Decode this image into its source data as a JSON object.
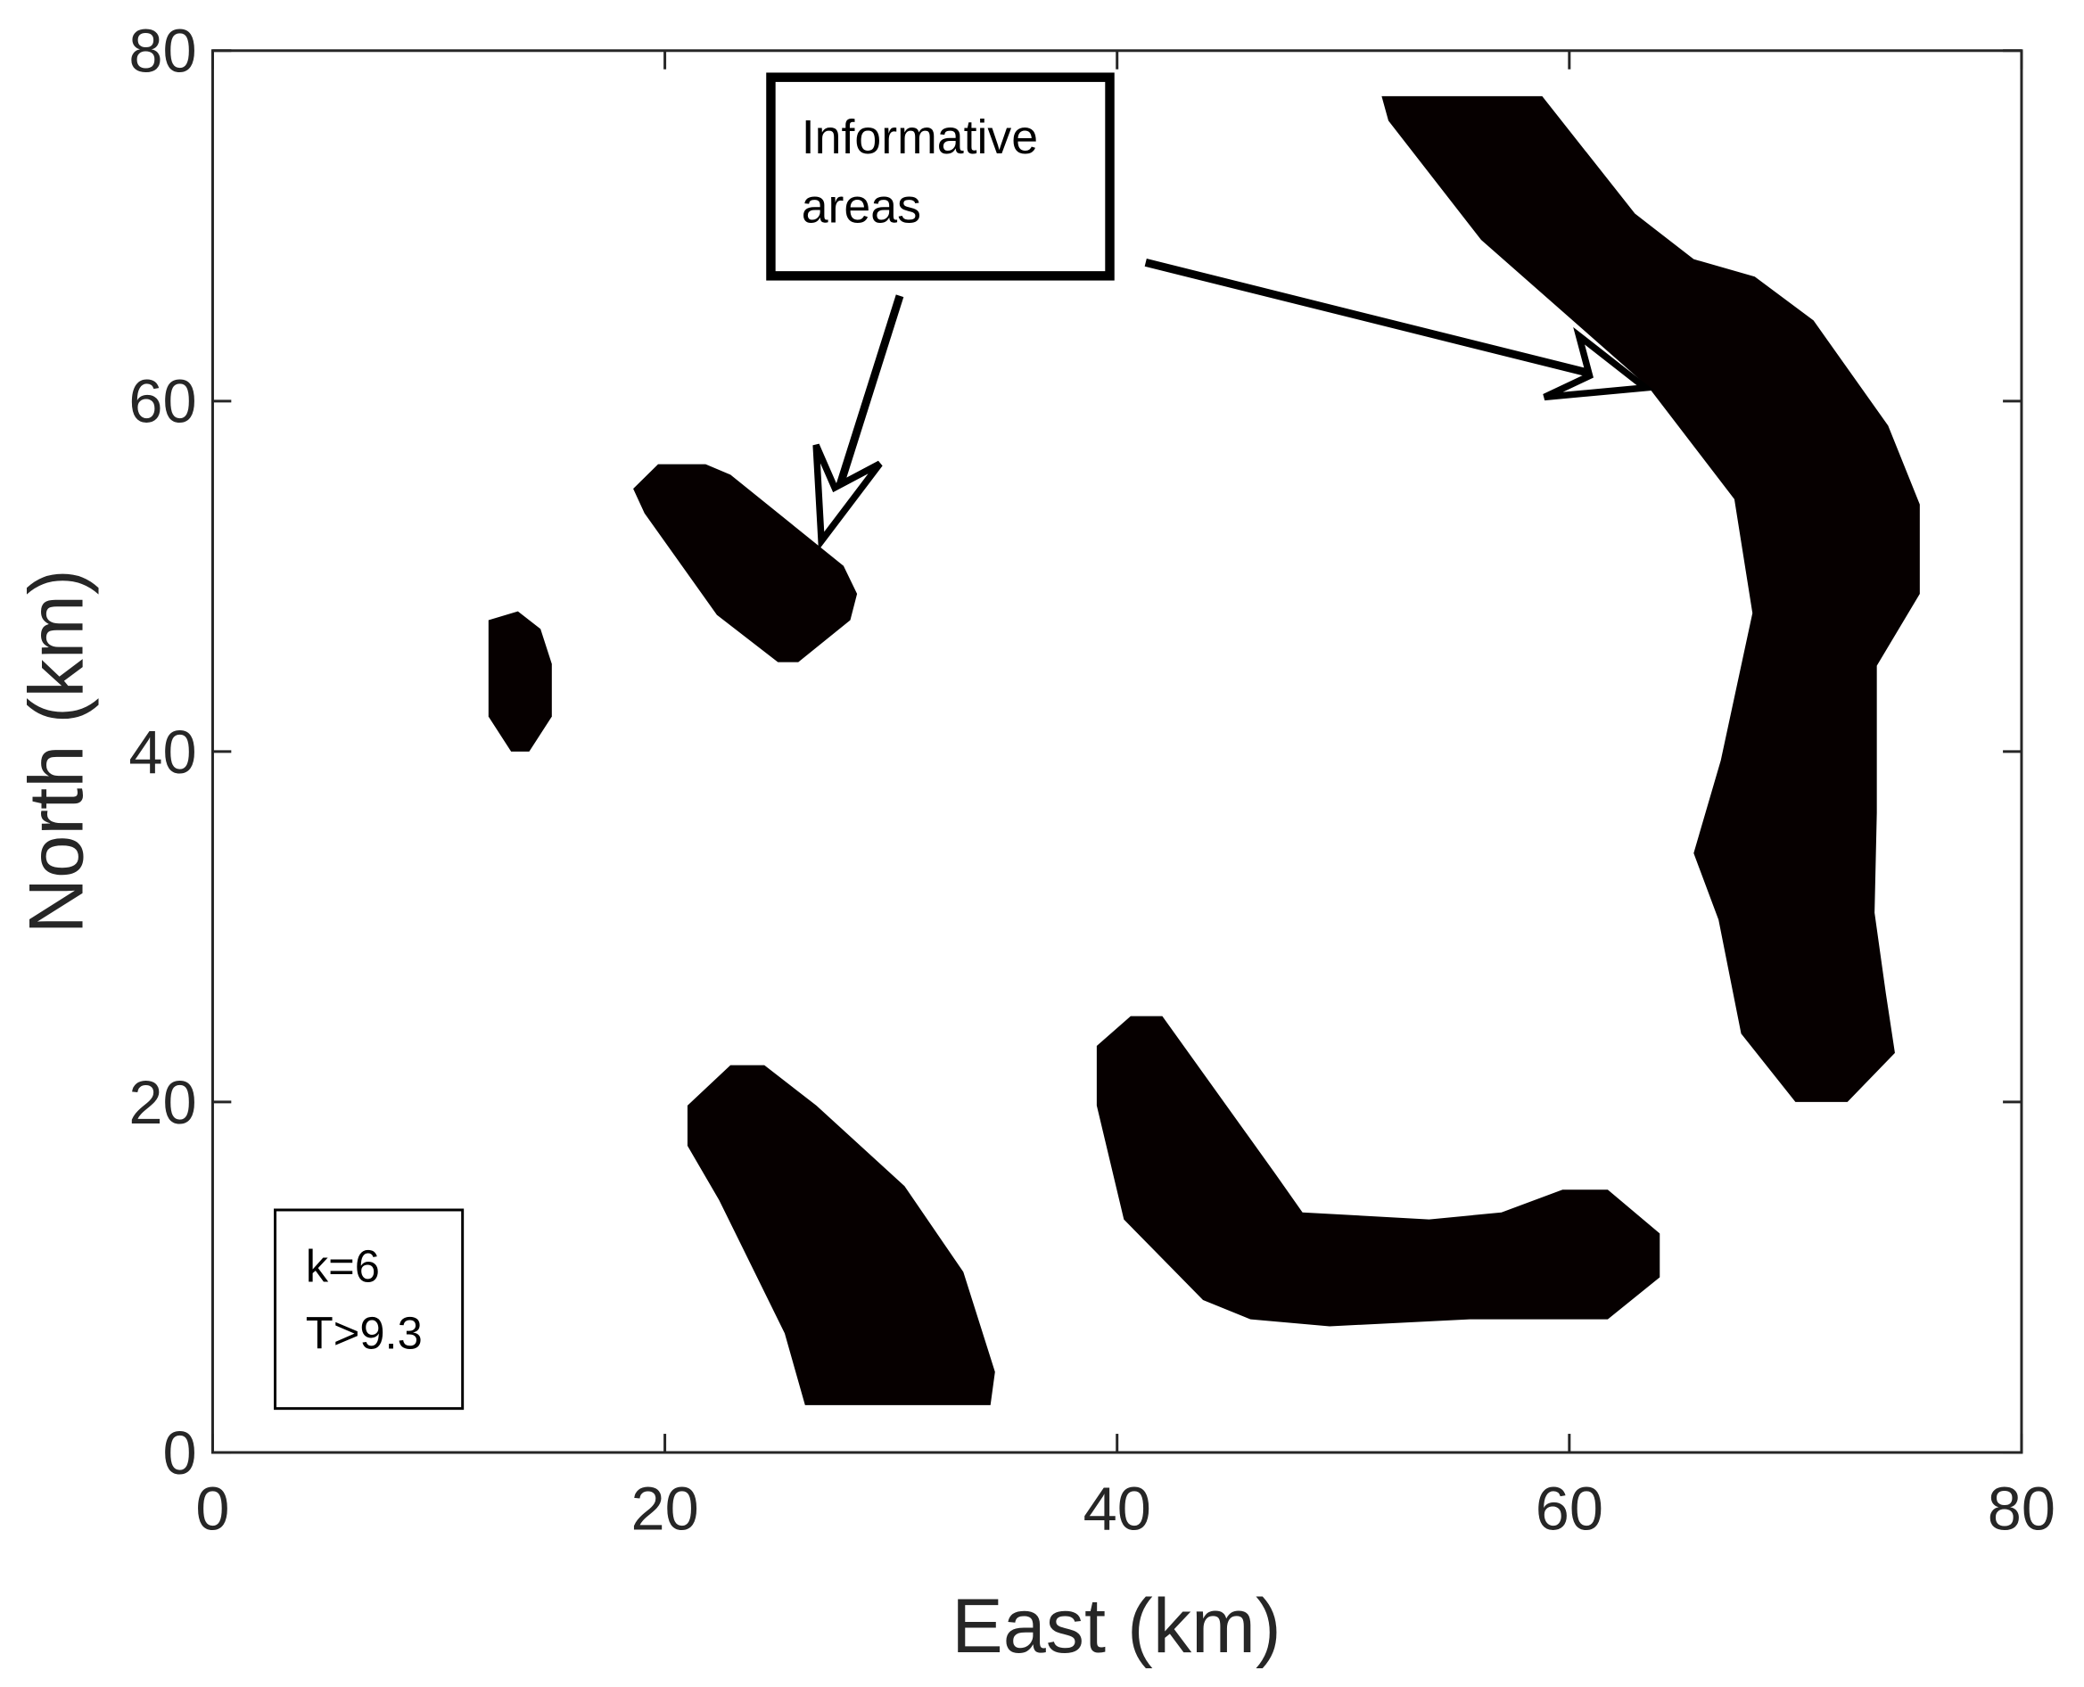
{
  "chart_data": {
    "type": "region",
    "xlabel": "East (km)",
    "ylabel": "North (km)",
    "xlim": [
      0,
      80
    ],
    "ylim": [
      0,
      80
    ],
    "xticks": [
      0,
      20,
      40,
      60,
      80
    ],
    "yticks": [
      0,
      20,
      40,
      60,
      80
    ],
    "color": "#060000",
    "regions": [
      {
        "x": [
          12.2,
          13.5,
          14.5,
          15.0,
          15.0,
          14.0,
          13.2,
          12.2
        ],
        "y": [
          47.5,
          48.0,
          47.0,
          45.0,
          42.0,
          40.0,
          40.0,
          42.0
        ]
      },
      {
        "x": [
          18.6,
          19.7,
          21.8,
          22.9,
          27.9,
          28.5,
          28.2,
          25.9,
          25.0,
          22.3,
          19.1
        ],
        "y": [
          55.0,
          56.4,
          56.4,
          55.8,
          50.6,
          49.0,
          47.5,
          45.1,
          45.1,
          47.8,
          53.6
        ]
      },
      {
        "x": [
          21.0,
          22.9,
          24.4,
          26.7,
          30.6,
          33.2,
          34.6,
          34.4,
          26.2,
          25.3,
          22.4,
          21.0
        ],
        "y": [
          19.8,
          22.1,
          22.1,
          19.8,
          15.2,
          10.3,
          4.6,
          2.7,
          2.7,
          6.8,
          14.4,
          17.5
        ]
      },
      {
        "x": [
          39.1,
          40.6,
          42.0,
          47.0,
          48.2,
          53.8,
          57.0,
          59.7,
          61.7,
          64.0,
          64.0,
          61.7,
          55.6,
          49.4,
          45.9,
          43.8,
          40.3,
          39.1
        ],
        "y": [
          23.2,
          24.9,
          24.9,
          15.9,
          13.7,
          13.3,
          13.7,
          15.0,
          15.0,
          12.5,
          10.0,
          7.6,
          7.6,
          7.2,
          7.6,
          8.7,
          13.3,
          19.8
        ]
      },
      {
        "x": [
          51.7,
          58.8,
          62.9,
          65.5,
          68.2,
          70.8,
          74.1,
          75.5,
          75.5,
          73.6,
          73.6,
          73.5,
          74.0,
          74.4,
          72.3,
          70.0,
          67.6,
          66.6,
          65.5,
          66.7,
          68.1,
          67.3,
          63.5,
          56.1,
          52.0
        ],
        "y": [
          77.4,
          77.4,
          70.7,
          68.1,
          67.1,
          64.6,
          58.6,
          54.1,
          49.0,
          44.9,
          36.5,
          30.8,
          26.2,
          22.8,
          20.0,
          20.0,
          23.9,
          30.4,
          34.2,
          39.5,
          47.9,
          54.4,
          60.8,
          69.2,
          76.0
        ]
      }
    ],
    "annotation": [
      "Informative",
      "areas"
    ],
    "text_box": [
      "k=6",
      "T>9.3"
    ]
  }
}
